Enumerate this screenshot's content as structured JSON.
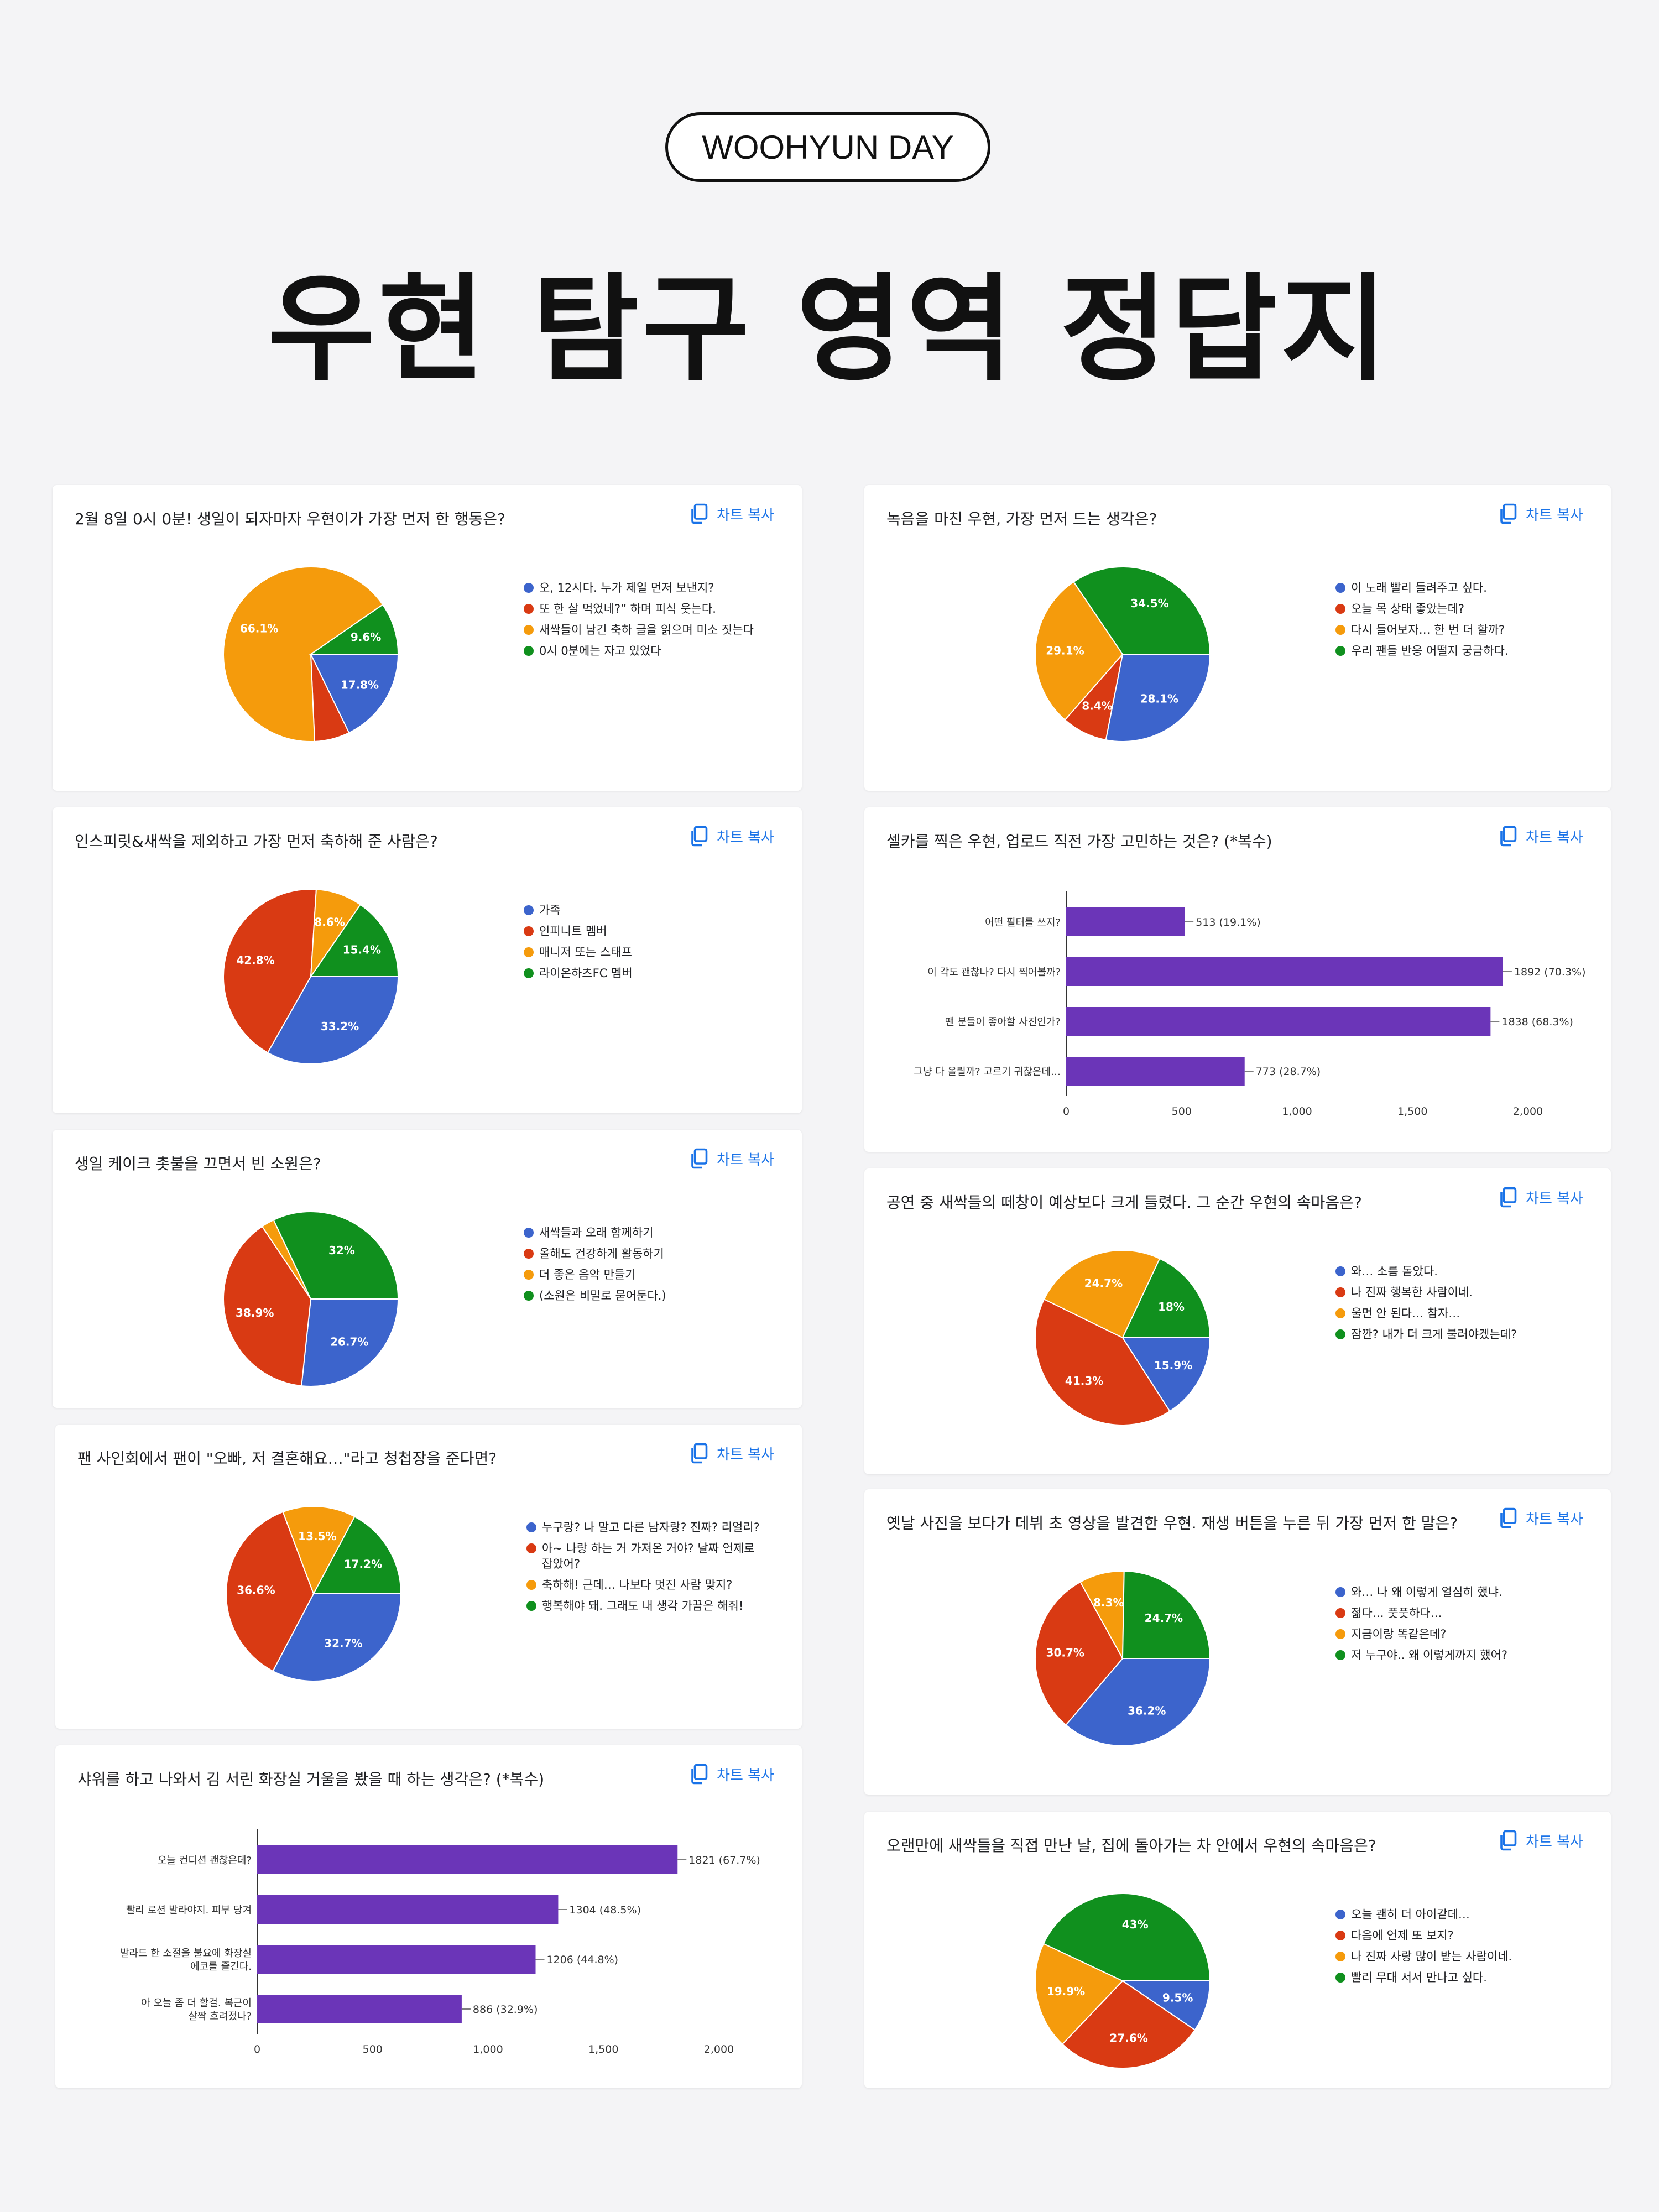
{
  "header": {
    "badge": "WOOHYUN DAY",
    "title": "우현 탐구 영역 정답지"
  },
  "copy_label": "차트 복사",
  "colors": {
    "blue": "#3c64cc",
    "red": "#d93a13",
    "orange": "#f59b0c",
    "green": "#10901e",
    "purple": "#6b35b8"
  },
  "chart_data": [
    {
      "type": "pie",
      "title": "2월 8일 0시 0분! 생일이 되자마자 우현이가 가장 먼저 한 행동은?",
      "labels": [
        "오, 12시다. 누가 제일 먼저 보낸지?",
        "또 한 살 먹었네?” 하며 피식 웃는다.",
        "새싹들이 남긴 축하 글을 읽으며 미소 짓는다",
        "0시 0분에는 자고 있었다"
      ],
      "values": [
        17.8,
        6.5,
        66.1,
        9.6
      ],
      "value_labels": [
        "17.8%",
        "",
        "66.1%",
        "9.6%"
      ]
    },
    {
      "type": "pie",
      "title": "녹음을 마친 우현, 가장 먼저 드는 생각은?",
      "labels": [
        "이 노래 빨리 들려주고 싶다.",
        "오늘 목 상태 좋았는데?",
        "다시 들어보자… 한 번 더 할까?",
        "우리 팬들 반응 어떨지 궁금하다."
      ],
      "values": [
        28.1,
        8.4,
        29.1,
        34.5
      ],
      "value_labels": [
        "28.1%",
        "8.4%",
        "29.1%",
        "34.5%"
      ]
    },
    {
      "type": "pie",
      "title": "인스피릿&새싹을 제외하고 가장 먼저 축하해 준 사람은?",
      "labels": [
        "가족",
        "인피니트 멤버",
        "매니저 또는 스태프",
        "라이온하츠FC 멤버"
      ],
      "values": [
        33.2,
        42.8,
        8.6,
        15.4
      ],
      "value_labels": [
        "33.2%",
        "42.8%",
        "8.6%",
        "15.4%"
      ]
    },
    {
      "type": "bar",
      "orientation": "horizontal",
      "title": "셀카를 찍은 우현, 업로드 직전 가장 고민하는 것은? (*복수)",
      "categories": [
        "어떤 필터를 쓰지?",
        "이 각도 괜찮나? 다시 찍어볼까?",
        "팬 분들이 좋아할 사진인가?",
        "그냥 다 올릴까? 고르기 귀찮은데…"
      ],
      "values": [
        513,
        1892,
        1838,
        773
      ],
      "value_labels": [
        "513 (19.1%)",
        "1892 (70.3%)",
        "1838 (68.3%)",
        "773 (28.7%)"
      ],
      "xticks": [
        "0",
        "500",
        "1,000",
        "1,500",
        "2,000"
      ],
      "xlim": [
        0,
        2000
      ]
    },
    {
      "type": "pie",
      "title": "생일 케이크 촛불을 끄면서 빈 소원은?",
      "labels": [
        "새싹들과 오래 함께하기",
        "올해도 건강하게 활동하기",
        "더 좋은 음악 만들기",
        "(소원은 비밀로 묻어둔다.)"
      ],
      "values": [
        26.7,
        38.9,
        2.4,
        32
      ],
      "value_labels": [
        "26.7%",
        "38.9%",
        "",
        "32%"
      ]
    },
    {
      "type": "pie",
      "title": "공연 중 새싹들의 떼창이 예상보다 크게 들렸다. 그 순간 우현의 속마음은?",
      "labels": [
        "와… 소름 돋았다.",
        "나 진짜 행복한 사람이네.",
        "울면 안 된다… 참자…",
        "잠깐? 내가 더 크게 불러야겠는데?"
      ],
      "values": [
        15.9,
        41.3,
        24.7,
        18
      ],
      "value_labels": [
        "15.9%",
        "41.3%",
        "24.7%",
        "18%"
      ]
    },
    {
      "type": "pie",
      "title": "팬 사인회에서 팬이 \"오빠, 저 결혼해요…\"라고 청첩장을 준다면?",
      "labels": [
        "누구랑? 나 말고 다른 남자랑? 진짜? 리얼리?",
        "아~ 나랑 하는 거 가져온 거야? 날짜 언제로 잡았어?",
        "축하해! 근데… 나보다 멋진 사람 맞지?",
        "행복해야 돼. 그래도 내 생각 가끔은 해줘!"
      ],
      "values": [
        32.7,
        36.6,
        13.5,
        17.2
      ],
      "value_labels": [
        "32.7%",
        "36.6%",
        "13.5%",
        "17.2%"
      ]
    },
    {
      "type": "pie",
      "title": "옛날 사진을 보다가 데뷔 초 영상을 발견한 우현. 재생 버튼을 누른 뒤 가장 먼저 한 말은?",
      "labels": [
        "와… 나 왜 이렇게 열심히 했냐.",
        "젊다… 풋풋하다…",
        "지금이랑 똑같은데?",
        "저 누구야.. 왜 이렇게까지 했어?"
      ],
      "values": [
        36.2,
        30.7,
        8.3,
        24.7
      ],
      "value_labels": [
        "36.2%",
        "30.7%",
        "8.3%",
        "24.7%"
      ]
    },
    {
      "type": "bar",
      "orientation": "horizontal",
      "title": "샤워를 하고 나와서 김 서린 화장실 거울을 봤을 때 하는 생각은? (*복수)",
      "categories": [
        "오늘 컨디션 괜찮은데?",
        "빨리 로션 발라야지. 피부 당겨",
        "발라드 한 소절을 불요에 화장실 에코를 즐긴다.",
        "아 오늘 좀 더 할걸. 복근이 살짝 흐려졌나?"
      ],
      "values": [
        1821,
        1304,
        1206,
        886
      ],
      "value_labels": [
        "1821 (67.7%)",
        "1304 (48.5%)",
        "1206 (44.8%)",
        "886 (32.9%)"
      ],
      "xticks": [
        "0",
        "500",
        "1,000",
        "1,500",
        "2,000"
      ],
      "xlim": [
        0,
        2000
      ]
    },
    {
      "type": "pie",
      "title": "오랜만에 새싹들을 직접 만난 날, 집에 돌아가는 차 안에서 우현의 속마음은?",
      "labels": [
        "오늘 괜히 더 아이같데…",
        "다음에 언제 또 보지?",
        "나 진짜 사랑 많이 받는 사람이네.",
        "빨리 무대 서서 만나고 싶다."
      ],
      "values": [
        9.5,
        27.6,
        19.9,
        43
      ],
      "value_labels": [
        "9.5%",
        "27.6%",
        "19.9%",
        "43%"
      ]
    }
  ]
}
